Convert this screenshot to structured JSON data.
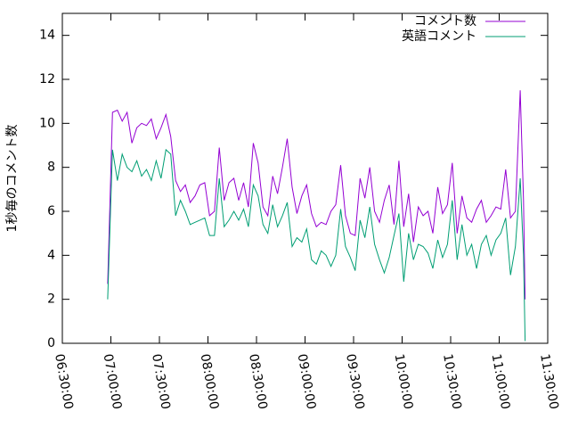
{
  "chart_data": {
    "type": "line",
    "ylabel": "1秒毎のコメント数",
    "x": [
      "06:58:00",
      "07:01:00",
      "07:04:00",
      "07:07:00",
      "07:10:00",
      "07:13:00",
      "07:16:00",
      "07:19:00",
      "07:22:00",
      "07:25:00",
      "07:28:00",
      "07:31:00",
      "07:34:00",
      "07:37:00",
      "07:40:00",
      "07:43:00",
      "07:46:00",
      "07:49:00",
      "07:52:00",
      "07:55:00",
      "07:58:00",
      "08:01:00",
      "08:04:00",
      "08:07:00",
      "08:10:00",
      "08:13:00",
      "08:16:00",
      "08:19:00",
      "08:22:00",
      "08:25:00",
      "08:28:00",
      "08:31:00",
      "08:34:00",
      "08:37:00",
      "08:40:00",
      "08:43:00",
      "08:46:00",
      "08:49:00",
      "08:52:00",
      "08:55:00",
      "08:58:00",
      "09:01:00",
      "09:04:00",
      "09:07:00",
      "09:10:00",
      "09:13:00",
      "09:16:00",
      "09:19:00",
      "09:22:00",
      "09:25:00",
      "09:28:00",
      "09:31:00",
      "09:34:00",
      "09:37:00",
      "09:40:00",
      "09:43:00",
      "09:46:00",
      "09:49:00",
      "09:52:00",
      "09:55:00",
      "09:58:00",
      "10:01:00",
      "10:04:00",
      "10:07:00",
      "10:10:00",
      "10:13:00",
      "10:16:00",
      "10:19:00",
      "10:22:00",
      "10:25:00",
      "10:28:00",
      "10:31:00",
      "10:34:00",
      "10:37:00",
      "10:40:00",
      "10:43:00",
      "10:46:00",
      "10:49:00",
      "10:52:00",
      "10:55:00",
      "10:58:00",
      "11:01:00",
      "11:04:00",
      "11:07:00",
      "11:10:00",
      "11:13:00",
      "11:15:00",
      "11:16:00"
    ],
    "series": [
      {
        "name": "コメント数",
        "color": "#9400d3",
        "values": [
          2.7,
          10.5,
          10.6,
          10.1,
          10.5,
          9.1,
          9.8,
          10.0,
          9.9,
          10.2,
          9.3,
          9.8,
          10.4,
          9.4,
          7.4,
          6.9,
          7.2,
          6.4,
          6.7,
          7.2,
          7.3,
          5.8,
          6.0,
          8.9,
          6.5,
          7.3,
          7.5,
          6.5,
          7.3,
          6.2,
          9.1,
          8.2,
          6.2,
          5.8,
          7.6,
          6.8,
          8.0,
          9.3,
          7.1,
          5.9,
          6.7,
          7.2,
          5.9,
          5.3,
          5.5,
          5.4,
          6.0,
          6.3,
          8.1,
          5.8,
          5.0,
          4.9,
          7.5,
          6.6,
          8.0,
          6.0,
          5.5,
          6.5,
          7.2,
          5.4,
          8.3,
          5.3,
          6.8,
          4.6,
          6.2,
          5.8,
          6.0,
          5.0,
          7.1,
          5.9,
          6.3,
          8.2,
          5.0,
          6.7,
          5.7,
          5.5,
          6.1,
          6.5,
          5.5,
          5.8,
          6.2,
          6.1,
          7.9,
          5.7,
          6.0,
          11.5,
          6.5,
          2.0
        ]
      },
      {
        "name": "英語コメント",
        "color": "#009e73",
        "values": [
          2.0,
          8.8,
          7.4,
          8.6,
          8.0,
          7.8,
          8.3,
          7.6,
          7.9,
          7.4,
          8.3,
          7.5,
          8.8,
          8.6,
          5.8,
          6.5,
          6.0,
          5.4,
          5.5,
          5.6,
          5.7,
          4.9,
          4.9,
          7.5,
          5.3,
          5.6,
          6.0,
          5.6,
          6.1,
          5.3,
          7.2,
          6.7,
          5.4,
          5.0,
          6.3,
          5.3,
          5.8,
          6.4,
          4.4,
          4.8,
          4.6,
          5.2,
          3.8,
          3.6,
          4.2,
          4.0,
          3.5,
          4.0,
          6.1,
          4.4,
          3.9,
          3.3,
          5.6,
          4.8,
          6.2,
          4.5,
          3.8,
          3.2,
          3.9,
          4.9,
          5.9,
          2.8,
          5.0,
          3.8,
          4.5,
          4.4,
          4.1,
          3.4,
          4.7,
          3.9,
          4.5,
          6.5,
          3.8,
          5.4,
          4.0,
          4.5,
          3.4,
          4.5,
          4.9,
          4.0,
          4.7,
          5.0,
          5.7,
          3.1,
          4.4,
          7.5,
          4.0,
          0.1
        ]
      }
    ],
    "xlim": [
      "06:30:00",
      "11:30:00"
    ],
    "xticks": [
      "06:30:00",
      "07:00:00",
      "07:30:00",
      "08:00:00",
      "08:30:00",
      "09:00:00",
      "09:30:00",
      "10:00:00",
      "10:30:00",
      "11:00:00",
      "11:30:00"
    ],
    "ylim": [
      0,
      15
    ],
    "yticks": [
      0,
      2,
      4,
      6,
      8,
      10,
      12,
      14
    ],
    "legend": "top-right"
  }
}
